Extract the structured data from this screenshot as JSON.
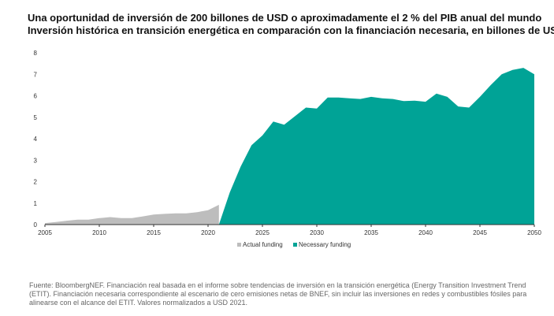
{
  "title_line1": "Una oportunidad de inversión de 200 billones de USD o aproximadamente el 2 % del PIB anual del mundo",
  "title_line2": "Inversión histórica en transición energética en comparación con la financiación necesaria, en billones de USD",
  "source": "Fuente: BloombergNEF. Financiación real basada en el informe sobre tendencias de inversión en la transición energética (Energy Transition Investment Trend (ETIT). Financiación necesaria correspondiente al escenario de cero emisiones netas de BNEF, sin incluir las inversiones en redes y combustibles fósiles para alinearse con el alcance del ETIT. Valores normalizados a USD 2021.",
  "colors": {
    "actual": "#bdbdbd",
    "necessary": "#00a396",
    "axis": "#333333"
  },
  "chart_data": {
    "type": "area",
    "xlim": [
      2005,
      2050
    ],
    "ylim": [
      0,
      8
    ],
    "x_ticks": [
      2005,
      2010,
      2015,
      2020,
      2025,
      2030,
      2035,
      2040,
      2045,
      2050
    ],
    "y_ticks": [
      0,
      1,
      2,
      3,
      4,
      5,
      6,
      7,
      8
    ],
    "legend_position": "bottom-center",
    "grid": false,
    "series": [
      {
        "name": "Actual funding",
        "color": "#bdbdbd",
        "x": [
          2005,
          2006,
          2007,
          2008,
          2009,
          2010,
          2011,
          2012,
          2013,
          2014,
          2015,
          2016,
          2017,
          2018,
          2019,
          2020,
          2021
        ],
        "values": [
          0.07,
          0.12,
          0.18,
          0.23,
          0.23,
          0.3,
          0.35,
          0.3,
          0.3,
          0.38,
          0.47,
          0.5,
          0.52,
          0.52,
          0.58,
          0.67,
          0.92
        ]
      },
      {
        "name": "Necessary funding",
        "color": "#00a396",
        "x": [
          2021,
          2022,
          2023,
          2024,
          2025,
          2026,
          2027,
          2028,
          2029,
          2030,
          2031,
          2032,
          2033,
          2034,
          2035,
          2036,
          2037,
          2038,
          2039,
          2040,
          2041,
          2042,
          2043,
          2044,
          2045,
          2046,
          2047,
          2048,
          2049,
          2050
        ],
        "values": [
          0,
          1.5,
          2.7,
          3.7,
          4.15,
          4.8,
          4.65,
          5.05,
          5.45,
          5.4,
          5.92,
          5.92,
          5.88,
          5.85,
          5.95,
          5.88,
          5.85,
          5.75,
          5.77,
          5.72,
          6.1,
          5.95,
          5.5,
          5.45,
          5.95,
          6.5,
          7.0,
          7.2,
          7.3,
          7.0
        ]
      }
    ]
  }
}
